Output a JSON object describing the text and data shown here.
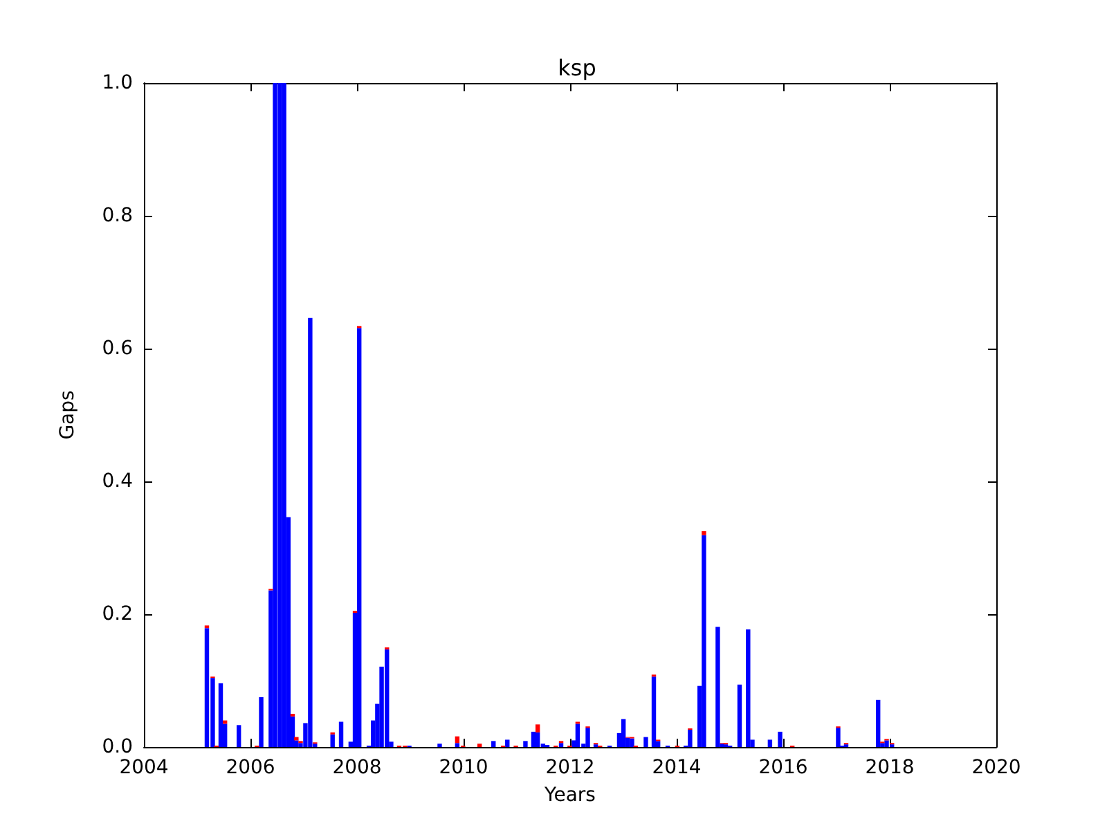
{
  "chart_data": {
    "type": "bar",
    "title": "ksp",
    "xlabel": "Years",
    "ylabel": "Gaps",
    "stacked": true,
    "grid": false,
    "x": [
      2005.14,
      2005.25,
      2005.32,
      2005.4,
      2005.48,
      2005.74,
      2006.08,
      2006.16,
      2006.34,
      2006.42,
      2006.51,
      2006.59,
      2006.67,
      2006.75,
      2006.82,
      2006.9,
      2006.99,
      2007.08,
      2007.17,
      2007.5,
      2007.66,
      2007.84,
      2007.92,
      2008.0,
      2008.18,
      2008.26,
      2008.34,
      2008.42,
      2008.52,
      2008.6,
      2008.75,
      2008.86,
      2008.94,
      2009.51,
      2009.84,
      2009.95,
      2010.26,
      2010.52,
      2010.7,
      2010.78,
      2010.94,
      2011.12,
      2011.27,
      2011.35,
      2011.45,
      2011.53,
      2011.69,
      2011.79,
      2011.95,
      2012.03,
      2012.1,
      2012.21,
      2012.29,
      2012.44,
      2012.52,
      2012.7,
      2012.88,
      2012.96,
      2013.04,
      2013.12,
      2013.19,
      2013.38,
      2013.53,
      2013.61,
      2013.79,
      2013.97,
      2014.13,
      2014.21,
      2014.39,
      2014.47,
      2014.73,
      2014.81,
      2014.88,
      2014.96,
      2015.14,
      2015.3,
      2015.38,
      2015.71,
      2015.9,
      2016.13,
      2016.99,
      2017.06,
      2017.14,
      2017.74,
      2017.82,
      2017.9,
      2018.0
    ],
    "series": [
      {
        "color": "#0000ff",
        "values": [
          0.179,
          0.104,
          0,
          0.096,
          0.035,
          0.033,
          0,
          0.075,
          0.236,
          1.0,
          1.0,
          1.0,
          0.346,
          0.046,
          0.01,
          0.006,
          0.036,
          0.646,
          0.005,
          0.019,
          0.038,
          0.008,
          0.202,
          0.631,
          0.002,
          0.04,
          0.065,
          0.121,
          0.147,
          0.008,
          0,
          0,
          0.002,
          0.005,
          0.006,
          0,
          0,
          0.009,
          0,
          0.011,
          0,
          0.009,
          0.023,
          0.022,
          0.005,
          0.003,
          0,
          0.006,
          0,
          0.01,
          0.035,
          0.005,
          0.029,
          0.004,
          0,
          0.002,
          0.021,
          0.042,
          0.014,
          0.013,
          0,
          0.015,
          0.106,
          0.009,
          0.002,
          0,
          0.002,
          0.026,
          0.092,
          0.319,
          0.181,
          0.005,
          0.004,
          0.002,
          0.094,
          0.177,
          0.011,
          0.011,
          0.023,
          0,
          0.029,
          0.002,
          0.004,
          0.071,
          0.006,
          0.01,
          0.004
        ]
      },
      {
        "color": "#ff0000",
        "values": [
          0.004,
          0.002,
          0.002,
          0,
          0.005,
          0,
          0.002,
          0,
          0.002,
          0,
          0,
          0,
          0,
          0.004,
          0.005,
          0.003,
          0,
          0,
          0.002,
          0.003,
          0,
          0,
          0.003,
          0.003,
          0,
          0,
          0,
          0,
          0.003,
          0,
          0.002,
          0.002,
          0,
          0,
          0.01,
          0.002,
          0.005,
          0,
          0.002,
          0,
          0.002,
          0,
          0,
          0.012,
          0,
          0,
          0.002,
          0.003,
          0.002,
          0,
          0.003,
          0,
          0.002,
          0.002,
          0.002,
          0,
          0,
          0,
          0.001,
          0.002,
          0.002,
          0,
          0.003,
          0.002,
          0,
          0.002,
          0,
          0.002,
          0,
          0.006,
          0,
          0.001,
          0.002,
          0,
          0,
          0,
          0,
          0,
          0,
          0.002,
          0.002,
          0,
          0.002,
          0,
          0.002,
          0.002,
          0.002
        ]
      }
    ],
    "xlim": [
      2004,
      2020
    ],
    "xticks": [
      2004,
      2006,
      2008,
      2010,
      2012,
      2014,
      2016,
      2018,
      2020
    ],
    "ylim": [
      0,
      1
    ],
    "yticks": [
      {
        "value": 0,
        "label": "0.0"
      },
      {
        "value": 0.2,
        "label": "0.2"
      },
      {
        "value": 0.4,
        "label": "0.4"
      },
      {
        "value": 0.6,
        "label": "0.6"
      },
      {
        "value": 0.8,
        "label": "0.8"
      },
      {
        "value": 1,
        "label": "1.0"
      }
    ]
  }
}
